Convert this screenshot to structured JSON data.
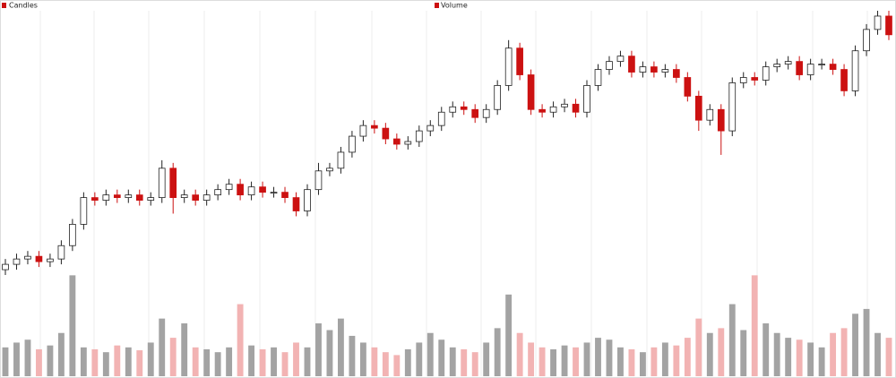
{
  "chart_data": [
    {
      "type": "candlestick",
      "name": "Candles",
      "up_color": "#ffffff",
      "down_color": "#cc1111",
      "ylim": [
        0,
        100
      ],
      "open": [
        3,
        5,
        7,
        8,
        6,
        7,
        12,
        20,
        30,
        29,
        31,
        30,
        31,
        29,
        30,
        41,
        30,
        31,
        29,
        31,
        33,
        35,
        31,
        34,
        32,
        32,
        30,
        25,
        33,
        40,
        41,
        47,
        53,
        57,
        56,
        52,
        50,
        51,
        55,
        57,
        62,
        64,
        63,
        60,
        63,
        72,
        86,
        76,
        63,
        62,
        64,
        65,
        62,
        72,
        78,
        81,
        83,
        77,
        79,
        77,
        78,
        75,
        68,
        59,
        63,
        55,
        73,
        75,
        74,
        79,
        80,
        81,
        76,
        80,
        80,
        78,
        70,
        85,
        93,
        98
      ],
      "high": [
        7,
        9,
        10,
        10,
        9,
        14,
        22,
        32,
        32,
        33,
        33,
        33,
        33,
        32,
        44,
        43,
        33,
        33,
        33,
        35,
        37,
        37,
        36,
        36,
        34,
        34,
        32,
        35,
        43,
        43,
        49,
        55,
        59,
        59,
        58,
        54,
        53,
        57,
        59,
        64,
        66,
        66,
        65,
        65,
        74,
        89,
        88,
        78,
        65,
        66,
        67,
        67,
        74,
        80,
        83,
        85,
        85,
        81,
        81,
        80,
        80,
        77,
        70,
        65,
        65,
        75,
        77,
        77,
        81,
        82,
        83,
        83,
        82,
        82,
        82,
        80,
        87,
        95,
        100,
        100
      ],
      "low": [
        1,
        3,
        5,
        4,
        4,
        5,
        10,
        18,
        27,
        27,
        28,
        28,
        27,
        27,
        28,
        24,
        28,
        27,
        27,
        29,
        31,
        29,
        29,
        30,
        30,
        28,
        23,
        23,
        31,
        38,
        39,
        45,
        51,
        54,
        50,
        48,
        48,
        49,
        53,
        55,
        60,
        61,
        58,
        58,
        61,
        70,
        74,
        61,
        60,
        60,
        62,
        60,
        60,
        70,
        76,
        79,
        75,
        75,
        75,
        75,
        73,
        66,
        55,
        57,
        46,
        53,
        71,
        72,
        72,
        77,
        78,
        74,
        74,
        78,
        76,
        68,
        68,
        83,
        91,
        89
      ],
      "close": [
        5,
        7,
        8,
        6,
        7,
        12,
        20,
        30,
        29,
        31,
        30,
        31,
        29,
        30,
        41,
        30,
        31,
        29,
        31,
        33,
        35,
        31,
        34,
        32,
        32,
        30,
        25,
        33,
        40,
        41,
        47,
        53,
        57,
        56,
        52,
        50,
        51,
        55,
        57,
        62,
        64,
        63,
        60,
        63,
        72,
        86,
        76,
        63,
        62,
        64,
        65,
        62,
        72,
        78,
        81,
        83,
        77,
        79,
        77,
        78,
        75,
        68,
        59,
        63,
        55,
        73,
        75,
        74,
        79,
        80,
        81,
        76,
        80,
        80,
        78,
        70,
        85,
        93,
        98,
        91
      ]
    },
    {
      "type": "bar",
      "name": "Volume",
      "up_color": "#a3a3a3",
      "down_color": "#f2b3b3",
      "ylim": [
        0,
        110
      ],
      "values": [
        30,
        35,
        38,
        28,
        32,
        45,
        105,
        30,
        28,
        25,
        32,
        30,
        27,
        35,
        60,
        40,
        55,
        30,
        28,
        25,
        30,
        75,
        32,
        28,
        30,
        25,
        35,
        30,
        55,
        48,
        60,
        42,
        35,
        30,
        25,
        22,
        28,
        35,
        45,
        38,
        30,
        28,
        25,
        35,
        50,
        85,
        45,
        35,
        30,
        28,
        32,
        30,
        35,
        40,
        38,
        30,
        28,
        25,
        30,
        35,
        32,
        40,
        60,
        45,
        50,
        75,
        48,
        105,
        55,
        45,
        40,
        38,
        35,
        30,
        45,
        50,
        65,
        70,
        45,
        40
      ]
    }
  ]
}
